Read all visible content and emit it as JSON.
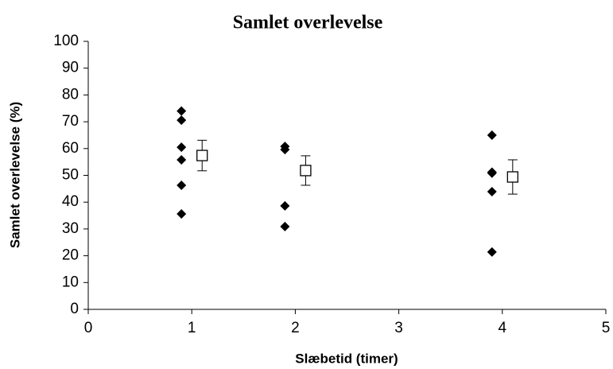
{
  "chart_data": {
    "type": "scatter",
    "title": "Samlet overlevelse",
    "x_label": "Slæbetid (timer)",
    "y_label": "Samlet overlevelse (%)",
    "series": [
      {
        "color": "#000000",
        "marker": "diamond",
        "x": [
          0.9,
          0.9,
          0.9,
          0.9,
          0.9,
          0.9,
          1.9,
          1.9,
          1.9,
          1.9,
          3.9,
          3.9,
          3.9,
          3.9,
          3.9
        ],
        "y": [
          74,
          70.6,
          60.5,
          55.8,
          46.3,
          35.6,
          60.8,
          59.6,
          38.6,
          30.9,
          65,
          51.2,
          50.8,
          43.9,
          21.4
        ]
      },
      {
        "color": "#000000",
        "marker": "square-open",
        "x": [
          1.1,
          2.1,
          4.1
        ],
        "y": [
          57.4,
          51.8,
          49.4
        ],
        "error": [
          5.7,
          5.5,
          6.4
        ]
      }
    ],
    "xlim": [
      0,
      5
    ],
    "xticks": [
      0,
      1,
      2,
      3,
      4,
      5
    ],
    "ylim": [
      0,
      100
    ],
    "yticks": [
      0,
      10,
      20,
      30,
      40,
      50,
      60,
      70,
      80,
      90,
      100
    ],
    "grid": false
  }
}
